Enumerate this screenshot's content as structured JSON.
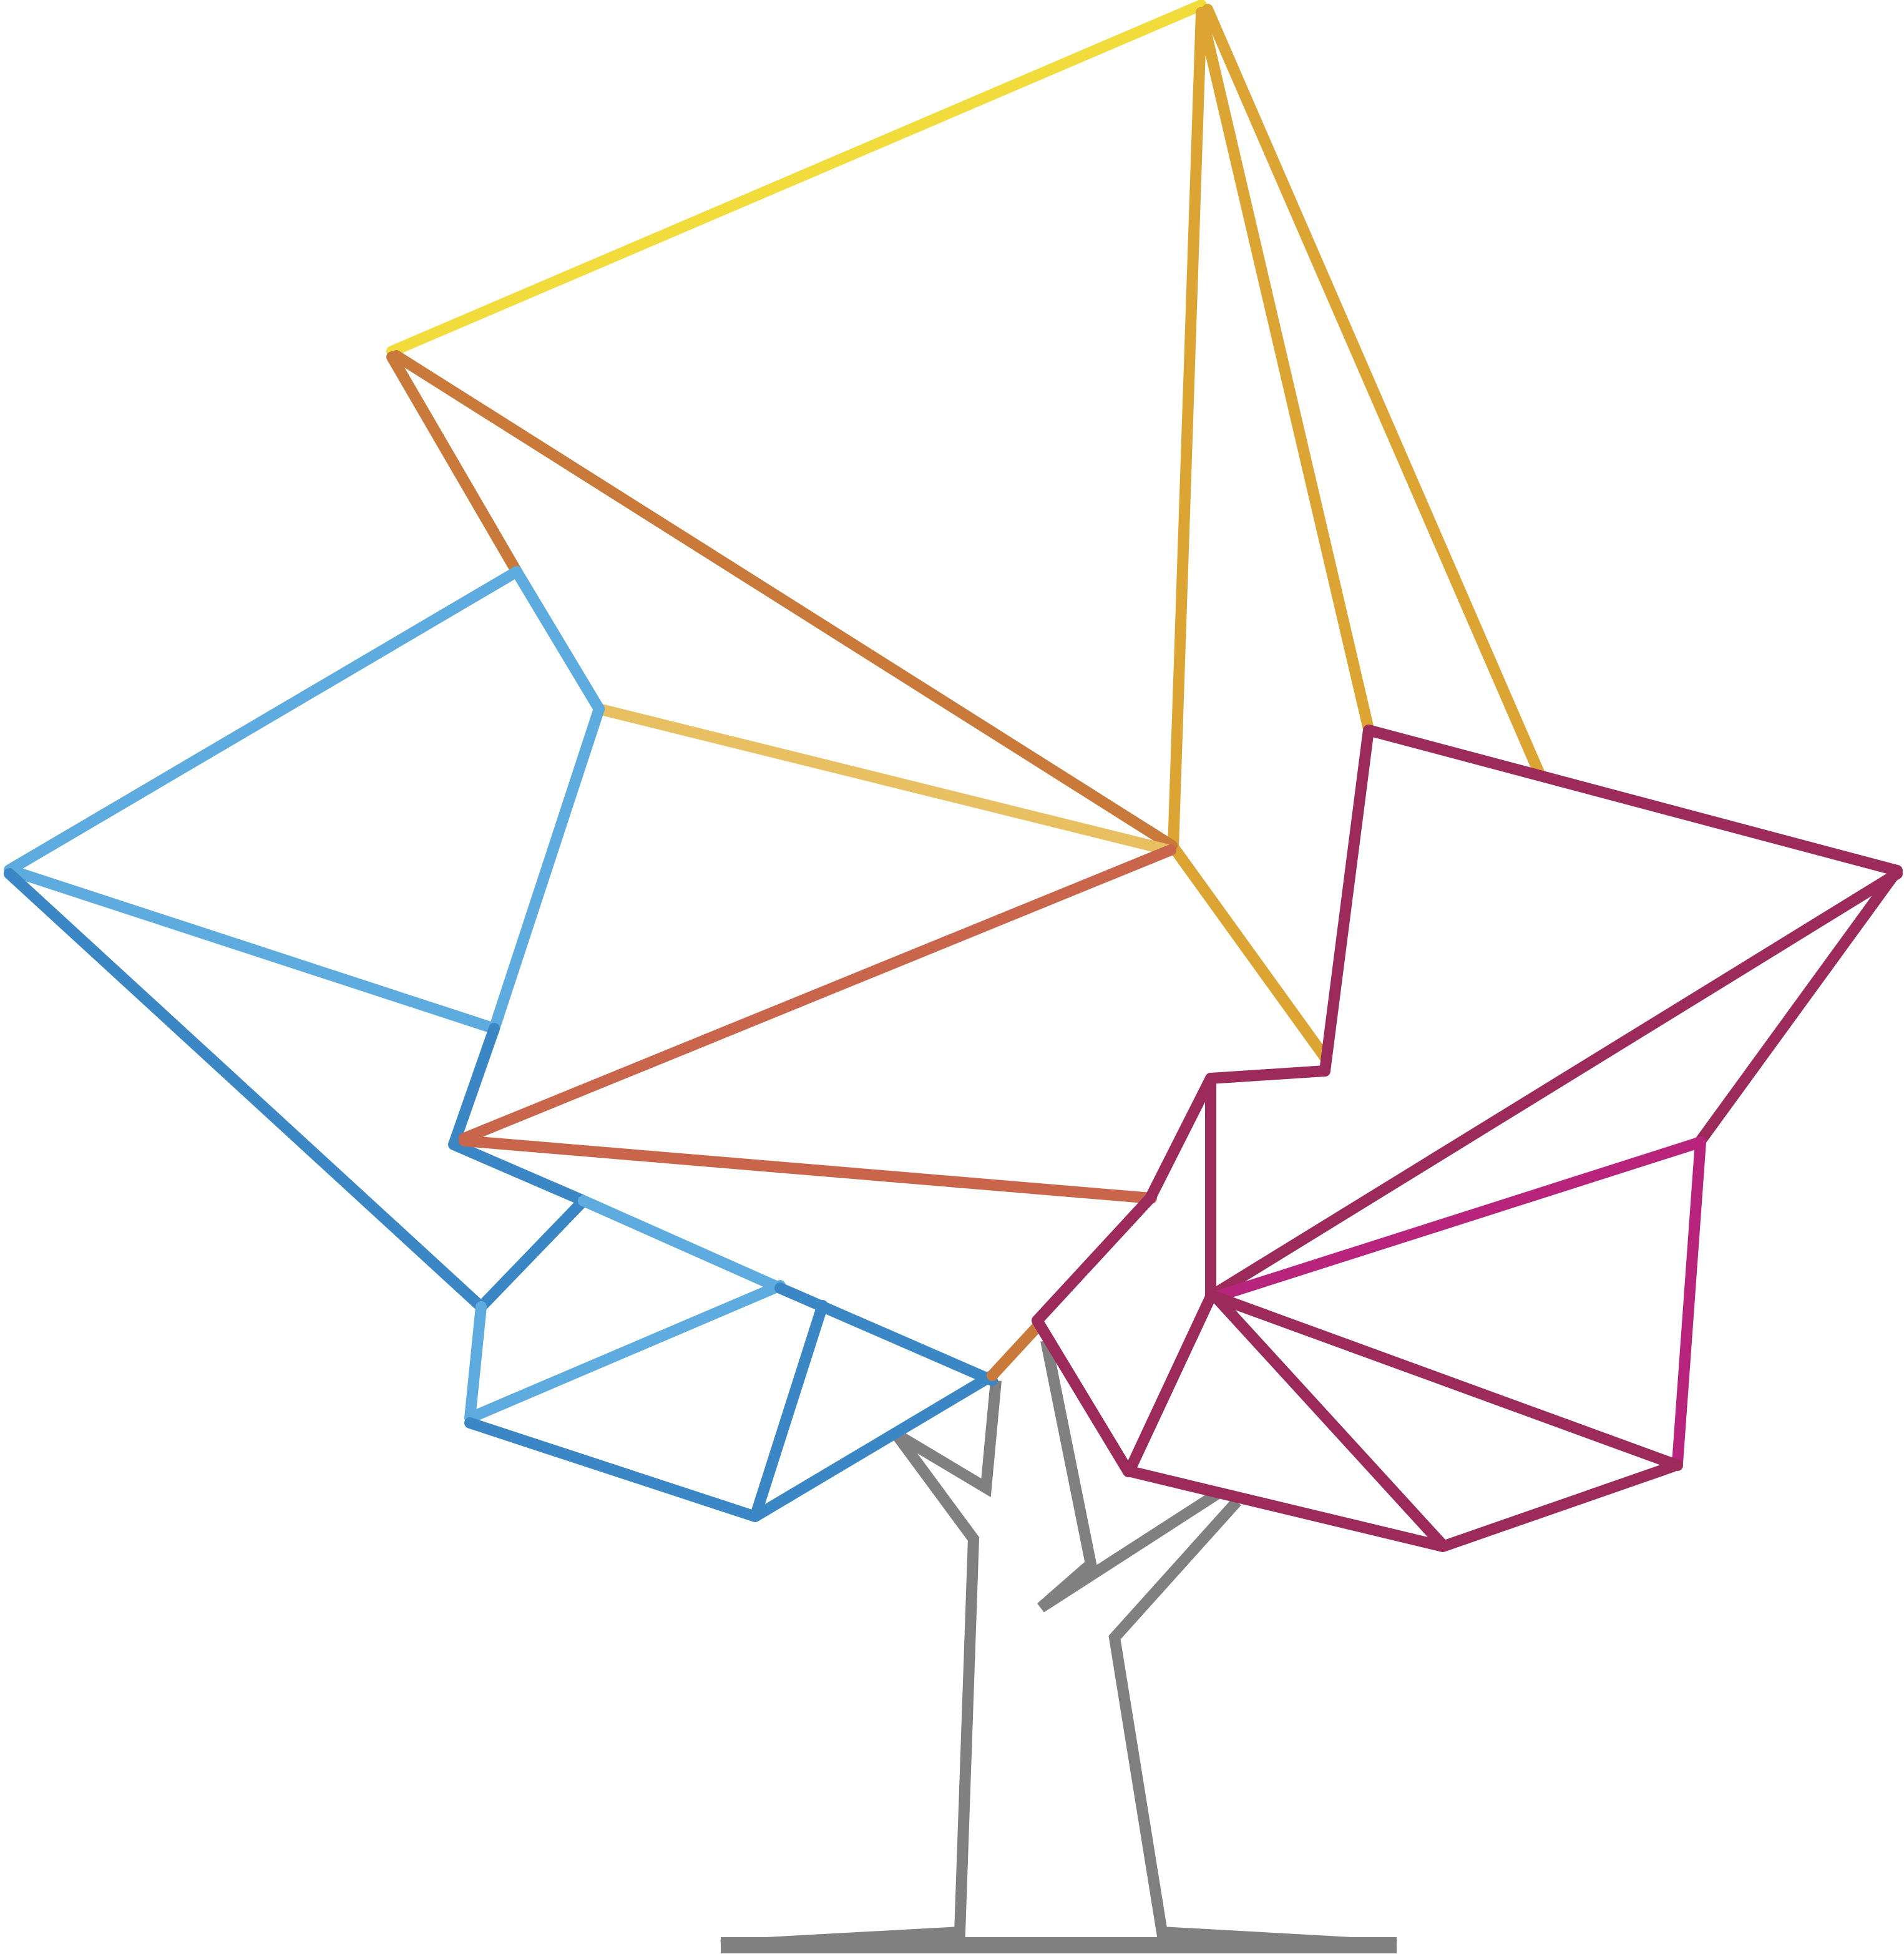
{
  "colors": {
    "yellow": "#f2dc3b",
    "gold": "#dca533",
    "light_gold": "#e8c062",
    "copper": "#c97a3b",
    "rust": "#c9654b",
    "sky_blue": "#5dabdf",
    "blue": "#3b86c4",
    "crimson": "#9c2b5b",
    "magenta": "#b8237c",
    "trunk_gray": "#808080"
  },
  "icons": {
    "tree": "geometric-polygon-tree-icon"
  }
}
